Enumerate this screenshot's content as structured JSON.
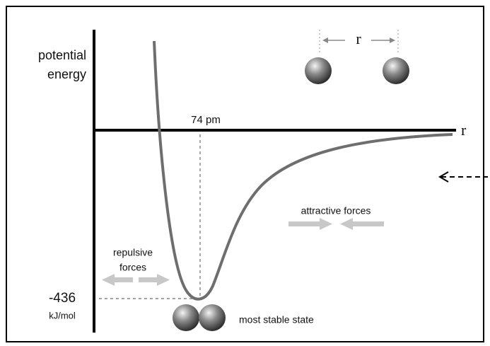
{
  "y_axis_label": [
    "potential",
    "energy"
  ],
  "x_axis_label": "r",
  "separation_label": "r",
  "bond_length": "74 pm",
  "energy_value": "-436",
  "energy_unit": "kJ/mol",
  "attractive_label": "attractive forces",
  "repulsive_label": [
    "repulsive",
    "forces"
  ],
  "stable_label": "most stable state"
}
